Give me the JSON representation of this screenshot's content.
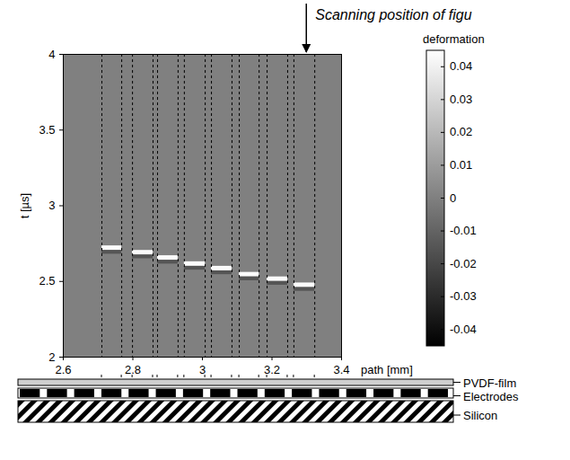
{
  "chart_data": {
    "type": "heatmap",
    "annotation": "Scanning position of figu",
    "annotation_x": 3.3,
    "xlabel": "path [mm]",
    "ylabel": "t [µs]",
    "xlim": [
      2.6,
      3.4
    ],
    "ylim": [
      2,
      4
    ],
    "xticks": [
      2.6,
      2.8,
      3,
      3.2,
      3.4
    ],
    "yticks": [
      2,
      2.5,
      3,
      3.5,
      4
    ],
    "cells": [
      {
        "x1": 2.6,
        "x2": 3.4,
        "t1": 2,
        "t2": 4,
        "value": 0
      },
      {
        "x1": 2.711,
        "x2": 2.768,
        "t1": 2.705,
        "t2": 2.735,
        "value": 0.044
      },
      {
        "x1": 2.711,
        "x2": 2.768,
        "t1": 2.68,
        "t2": 2.705,
        "value": -0.015
      },
      {
        "x1": 2.799,
        "x2": 2.858,
        "t1": 2.675,
        "t2": 2.705,
        "value": 0.044
      },
      {
        "x1": 2.799,
        "x2": 2.858,
        "t1": 2.65,
        "t2": 2.675,
        "value": -0.015
      },
      {
        "x1": 2.871,
        "x2": 2.93,
        "t1": 2.64,
        "t2": 2.67,
        "value": 0.044
      },
      {
        "x1": 2.871,
        "x2": 2.93,
        "t1": 2.615,
        "t2": 2.64,
        "value": -0.015
      },
      {
        "x1": 2.948,
        "x2": 3.008,
        "t1": 2.6,
        "t2": 2.63,
        "value": 0.044
      },
      {
        "x1": 2.948,
        "x2": 3.008,
        "t1": 2.575,
        "t2": 2.6,
        "value": -0.015
      },
      {
        "x1": 3.026,
        "x2": 3.085,
        "t1": 2.57,
        "t2": 2.6,
        "value": 0.044
      },
      {
        "x1": 3.026,
        "x2": 3.085,
        "t1": 2.545,
        "t2": 2.57,
        "value": -0.015
      },
      {
        "x1": 3.106,
        "x2": 3.163,
        "t1": 2.53,
        "t2": 2.56,
        "value": 0.044
      },
      {
        "x1": 3.106,
        "x2": 3.163,
        "t1": 2.505,
        "t2": 2.53,
        "value": -0.015
      },
      {
        "x1": 3.186,
        "x2": 3.245,
        "t1": 2.5,
        "t2": 2.53,
        "value": 0.044
      },
      {
        "x1": 3.186,
        "x2": 3.245,
        "t1": 2.475,
        "t2": 2.5,
        "value": -0.015
      },
      {
        "x1": 3.263,
        "x2": 3.323,
        "t1": 2.46,
        "t2": 2.49,
        "value": 0.044
      },
      {
        "x1": 3.263,
        "x2": 3.323,
        "t1": 2.435,
        "t2": 2.46,
        "value": -0.015
      }
    ],
    "colorbar": {
      "title": "deformation",
      "range": [
        -0.045,
        0.045
      ],
      "ticks": [
        0.04,
        0.03,
        0.02,
        0.01,
        0,
        -0.01,
        -0.02,
        -0.03,
        -0.04
      ]
    },
    "dashed_lines_x": [
      2.711,
      2.768,
      2.799,
      2.858,
      2.871,
      2.93,
      2.948,
      3.008,
      3.026,
      3.085,
      3.106,
      3.163,
      3.186,
      3.245,
      3.263,
      3.323
    ],
    "layers": [
      "PVDF-film",
      "Electrodes",
      "Silicon"
    ]
  }
}
